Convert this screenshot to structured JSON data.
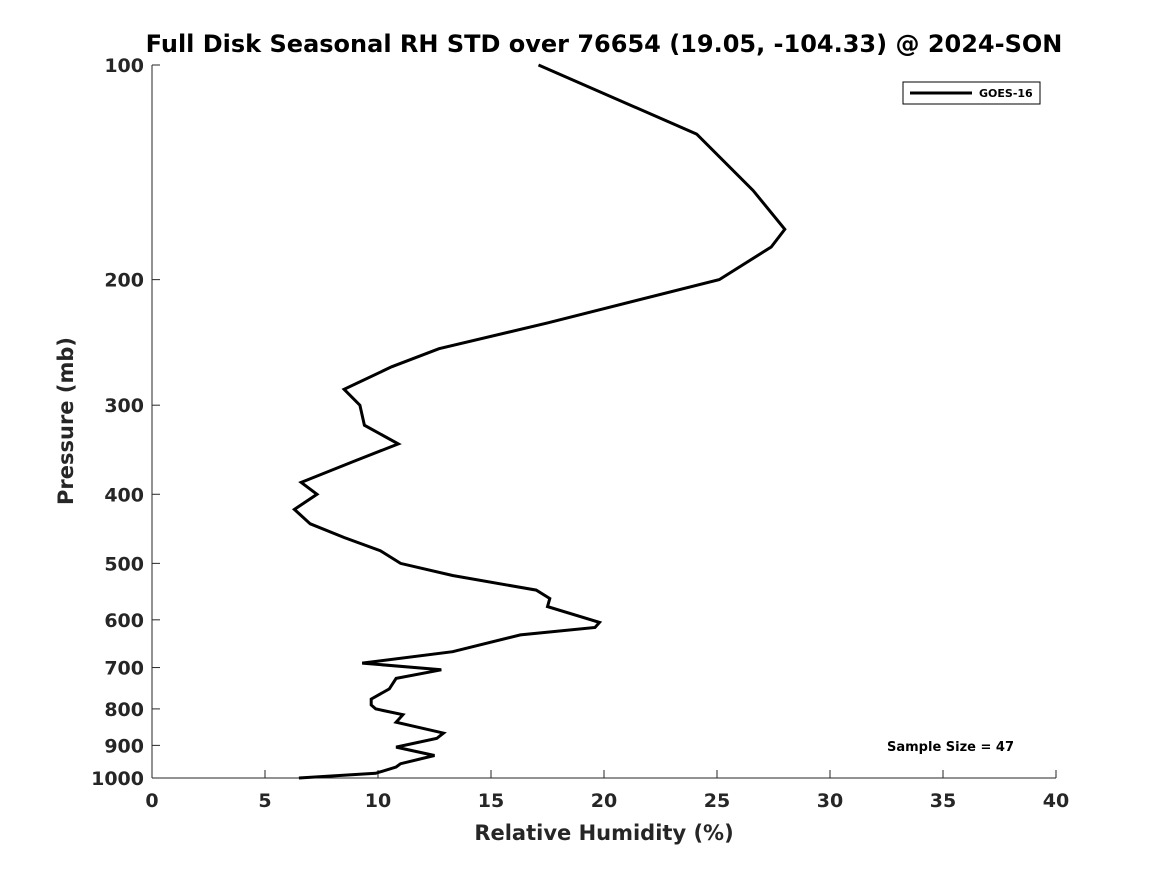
{
  "chart_data": {
    "type": "line",
    "title": "Full Disk Seasonal RH STD over 76654 (19.05, -104.33) @ 2024-SON",
    "xlabel": "Relative Humidity (%)",
    "ylabel": "Pressure (mb)",
    "xlim": [
      0,
      40
    ],
    "ylim": [
      100,
      1000
    ],
    "yscale": "log",
    "y_reversed": true,
    "x_ticks": [
      0,
      5,
      10,
      15,
      20,
      25,
      30,
      35,
      40
    ],
    "y_ticks": [
      100,
      200,
      300,
      400,
      500,
      600,
      700,
      800,
      900,
      1000
    ],
    "grid": false,
    "legend": {
      "position": "top-right",
      "entries": [
        "GOES-16"
      ]
    },
    "annotation": "Sample Size = 47",
    "series": [
      {
        "name": "GOES-16",
        "color": "#000000",
        "x": [
          17.1,
          24.1,
          26.6,
          28.0,
          27.4,
          25.1,
          17.5,
          12.7,
          10.6,
          8.5,
          9.2,
          9.4,
          10.9,
          8.9,
          6.6,
          7.3,
          6.3,
          7.0,
          8.5,
          10.1,
          11.0,
          13.3,
          17.0,
          17.6,
          17.5,
          19.8,
          19.6,
          16.3,
          13.3,
          9.3,
          12.8,
          10.8,
          10.5,
          9.7,
          9.7,
          9.9,
          11.1,
          10.8,
          12.9,
          12.6,
          10.8,
          12.5,
          11.0,
          10.8,
          9.9,
          6.5
        ],
        "y": [
          100,
          125,
          150,
          170,
          180,
          200,
          230,
          250,
          265,
          285,
          300,
          320,
          340,
          360,
          385,
          400,
          420,
          440,
          460,
          480,
          500,
          520,
          545,
          560,
          575,
          605,
          615,
          630,
          665,
          690,
          705,
          725,
          750,
          775,
          790,
          800,
          815,
          835,
          865,
          880,
          905,
          930,
          955,
          965,
          985,
          1000
        ]
      }
    ]
  }
}
